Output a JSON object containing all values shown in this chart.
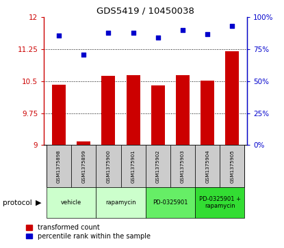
{
  "title": "GDS5419 / 10450038",
  "samples": [
    "GSM1375898",
    "GSM1375899",
    "GSM1375900",
    "GSM1375901",
    "GSM1375902",
    "GSM1375903",
    "GSM1375904",
    "GSM1375905"
  ],
  "transformed_count": [
    10.42,
    9.08,
    10.62,
    10.65,
    10.4,
    10.65,
    10.52,
    11.2
  ],
  "percentile_rank": [
    86,
    71,
    88,
    88,
    84,
    90,
    87,
    93
  ],
  "ylim_left": [
    9,
    12
  ],
  "ylim_right": [
    0,
    100
  ],
  "yticks_left": [
    9,
    9.75,
    10.5,
    11.25,
    12
  ],
  "yticks_right": [
    0,
    25,
    50,
    75,
    100
  ],
  "bar_color": "#cc0000",
  "dot_color": "#0000cc",
  "protocol_groups": [
    {
      "label": "vehicle",
      "start": 0,
      "end": 1,
      "color": "#ccffcc"
    },
    {
      "label": "rapamycin",
      "start": 2,
      "end": 3,
      "color": "#ccffcc"
    },
    {
      "label": "PD-0325901",
      "start": 4,
      "end": 5,
      "color": "#66ee66"
    },
    {
      "label": "PD-0325901 +\nrapamycin",
      "start": 6,
      "end": 7,
      "color": "#33dd33"
    }
  ],
  "sample_box_color": "#cccccc",
  "legend_bar_label": "transformed count",
  "legend_dot_label": "percentile rank within the sample",
  "figsize": [
    4.15,
    3.63
  ],
  "dpi": 100
}
